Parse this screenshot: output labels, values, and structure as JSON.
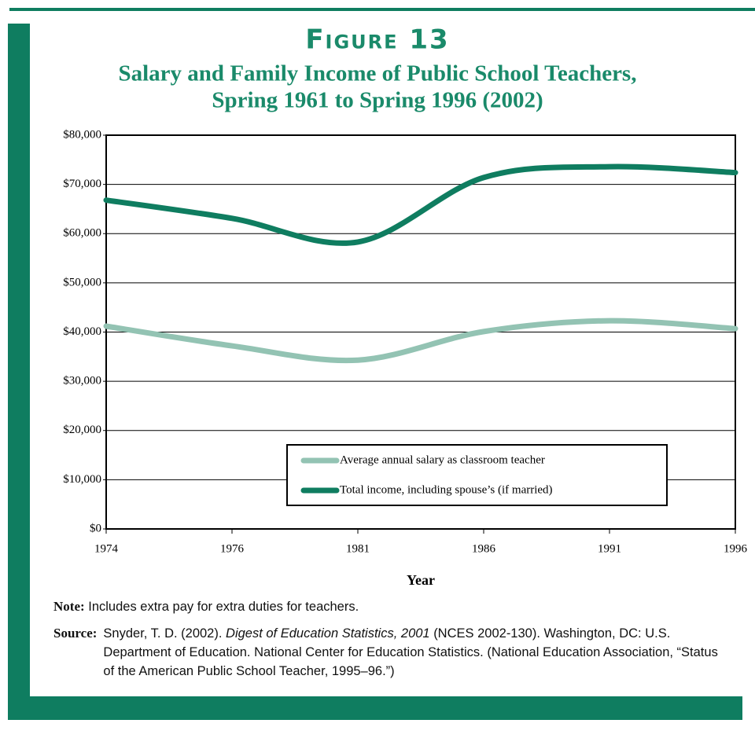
{
  "chart_data": {
    "type": "line",
    "title": "Figure 13",
    "subtitle": [
      "Salary and Family Income of Public School Teachers,",
      "Spring 1961 to Spring 1996 (2002)"
    ],
    "categories": [
      "1974",
      "1976",
      "1981",
      "1986",
      "1991",
      "1996"
    ],
    "series": [
      {
        "name": "Average annual salary as classroom teacher",
        "color": "#93c3b3",
        "values": [
          41200,
          37200,
          34300,
          40100,
          42300,
          40700
        ]
      },
      {
        "name": "Total income, including spouse’s (if married)",
        "color": "#0f7d60",
        "values": [
          66800,
          63100,
          58300,
          71400,
          73600,
          72400
        ]
      }
    ],
    "xlabel": "Year",
    "ylim": [
      0,
      80000
    ],
    "yticks": [
      {
        "value": 0,
        "label": "$0"
      },
      {
        "value": 10000,
        "label": "$10,000"
      },
      {
        "value": 20000,
        "label": "$20,000"
      },
      {
        "value": 30000,
        "label": "$30,000"
      },
      {
        "value": 40000,
        "label": "$40,000"
      },
      {
        "value": 50000,
        "label": "$50,000"
      },
      {
        "value": 60000,
        "label": "$60,000"
      },
      {
        "value": 70000,
        "label": "$70,000"
      },
      {
        "value": 80000,
        "label": "$80,000"
      }
    ],
    "grid": true,
    "smooth": true
  },
  "notes": {
    "note_label": "Note:",
    "note_text": "Includes extra pay for extra duties for teachers.",
    "source_label": "Source:",
    "source_before": "Snyder, T. D. (2002).",
    "source_italic": "Digest of Education Statistics, 2001",
    "source_after": "(NCES 2002-130). Washington, DC: U.S. Department of Education. National Center for Education Statistics. (National Education Association, “Status of the American Public School Teacher, 1995–96.”)"
  }
}
